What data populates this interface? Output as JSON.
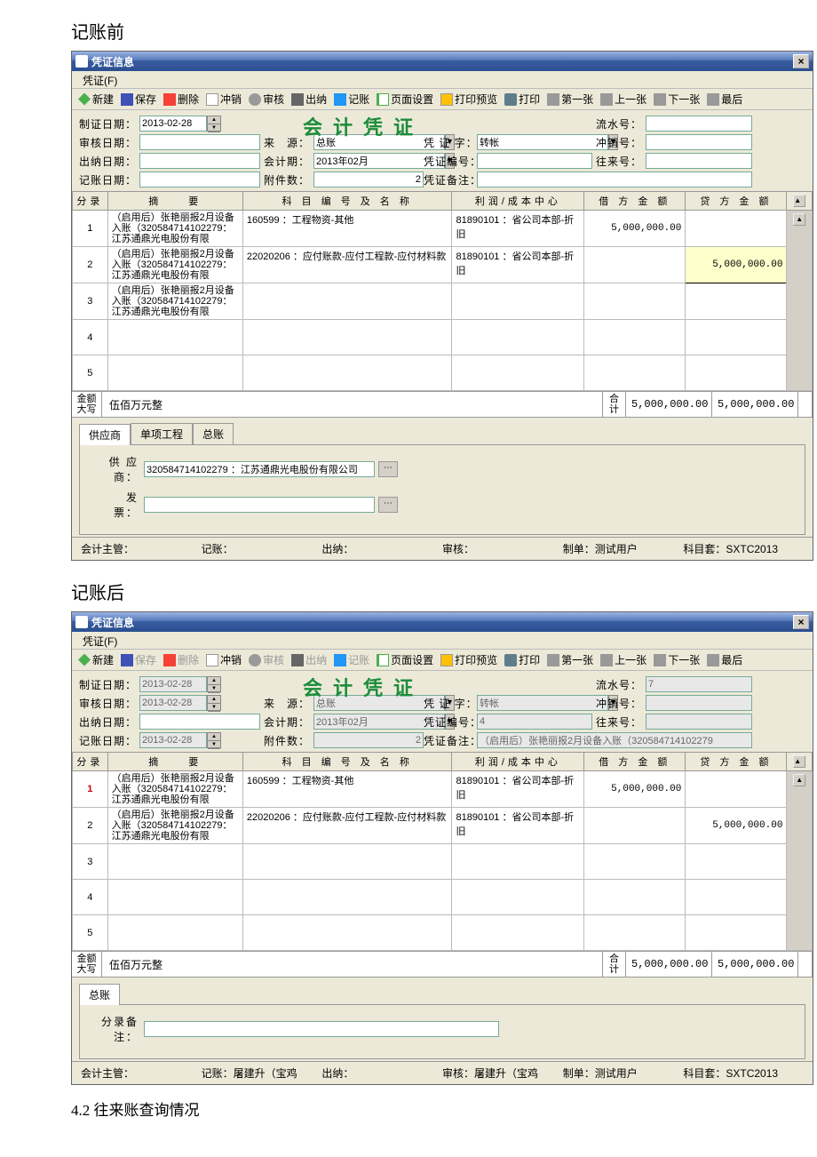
{
  "section1_title": "记账前",
  "section2_title": "记账后",
  "subsection_title": "4.2 往来账查询情况",
  "window": {
    "title": "凭证信息",
    "menu_voucher": "凭证(F)",
    "close_glyph": "×"
  },
  "toolbar": {
    "new": "新建",
    "save": "保存",
    "delete": "删除",
    "offset": "冲销",
    "audit": "审核",
    "cash": "出纳",
    "book": "记账",
    "page_setup": "页面设置",
    "preview": "打印预览",
    "print": "打印",
    "first": "第一张",
    "prev": "上一张",
    "next": "下一张",
    "last": "最后"
  },
  "big_title": "会计凭证",
  "labels": {
    "make_date": "制证日期：",
    "audit_date": "审核日期：",
    "cash_date": "出纳日期：",
    "book_date": "记账日期：",
    "source": "来　源：",
    "period": "会计期：",
    "attach": "附件数：",
    "v_char": "凭 证 字：",
    "v_no": "凭证编号：",
    "v_note": "凭证备注：",
    "serial": "流水号：",
    "offset_no": "冲销号：",
    "corr_no": "往来号："
  },
  "before": {
    "make_date": "2013-02-28",
    "audit_date": "",
    "cash_date": "",
    "book_date": "",
    "source": "总账",
    "period": "2013年02月",
    "attach": "2",
    "v_char": "转帐",
    "v_no": "",
    "v_note": "",
    "serial": "",
    "offset": "",
    "corr": "",
    "idx_red": false,
    "rows": [
      {
        "idx": "1",
        "summary": "（启用后）张艳丽报2月设备入账（320584714102279：江苏通鼎光电股份有限",
        "account": "160599 ：工程物资-其他",
        "center": "81890101 ：省公司本部-折旧",
        "dr": "5,000,000.00",
        "cr": ""
      },
      {
        "idx": "2",
        "summary": "（启用后）张艳丽报2月设备入账（320584714102279：江苏通鼎光电股份有限",
        "account": "22020206 ：应付账款-应付工程款-应付材料款",
        "center": "81890101 ：省公司本部-折旧",
        "dr": "",
        "cr": "5,000,000.00",
        "cr_edit": true
      },
      {
        "idx": "3",
        "summary": "（启用后）张艳丽报2月设备入账（320584714102279：江苏通鼎光电股份有限",
        "account": "",
        "center": "",
        "dr": "",
        "cr": ""
      },
      {
        "idx": "4",
        "summary": "",
        "account": "",
        "center": "",
        "dr": "",
        "cr": ""
      },
      {
        "idx": "5",
        "summary": "",
        "account": "",
        "center": "",
        "dr": "",
        "cr": ""
      }
    ],
    "amount_words": "伍佰万元整",
    "total_dr": "5,000,000.00",
    "total_cr": "5,000,000.00",
    "tabs": [
      "供应商",
      "单项工程",
      "总账"
    ],
    "supplier": "320584714102279 ：江苏通鼎光电股份有限公司",
    "invoice": "",
    "footer_book": "",
    "footer_cash": "",
    "footer_audit": "",
    "footer_maker": "测试用户",
    "footer_set": "SXTC2013"
  },
  "after": {
    "make_date": "2013-02-28",
    "audit_date": "2013-02-28",
    "cash_date": "",
    "book_date": "2013-02-28",
    "source": "总账",
    "period": "2013年02月",
    "attach": "2",
    "v_char": "转帐",
    "v_no": "4",
    "v_note": "（启用后）张艳丽报2月设备入账（320584714102279",
    "serial": "7",
    "offset": "",
    "corr": "",
    "idx_red": true,
    "rows": [
      {
        "idx": "1",
        "summary": "（启用后）张艳丽报2月设备入账（320584714102279：江苏通鼎光电股份有限",
        "account": "160599 ：工程物资-其他",
        "center": "81890101 ：省公司本部-折旧",
        "dr": "5,000,000.00",
        "cr": ""
      },
      {
        "idx": "2",
        "summary": "（启用后）张艳丽报2月设备入账（320584714102279：江苏通鼎光电股份有限",
        "account": "22020206 ：应付账款-应付工程款-应付材料款",
        "center": "81890101 ：省公司本部-折旧",
        "dr": "",
        "cr": "5,000,000.00"
      },
      {
        "idx": "3",
        "summary": "",
        "account": "",
        "center": "",
        "dr": "",
        "cr": ""
      },
      {
        "idx": "4",
        "summary": "",
        "account": "",
        "center": "",
        "dr": "",
        "cr": ""
      },
      {
        "idx": "5",
        "summary": "",
        "account": "",
        "center": "",
        "dr": "",
        "cr": ""
      }
    ],
    "amount_words": "伍佰万元整",
    "total_dr": "5,000,000.00",
    "total_cr": "5,000,000.00",
    "tabs": [
      "总账"
    ],
    "entry_note_label": "分录备注：",
    "entry_note": "",
    "footer_book": "屠建升（宝鸡",
    "footer_cash": "",
    "footer_audit": "屠建升（宝鸡",
    "footer_maker": "测试用户",
    "footer_set": "SXTC2013"
  },
  "table_headers": {
    "idx": "分录",
    "summary": "摘　　要",
    "account": "科 目 编 号 及 名 称",
    "center": "利润/成本中心",
    "dr": "借 方 金 额",
    "cr": "贷 方 金 额"
  },
  "total_labels": {
    "words": "金额大写",
    "hj": "合计"
  },
  "tab_supplier_labels": {
    "supplier": "供 应 商：",
    "invoice": "发　　票："
  },
  "footer_labels": {
    "mgr": "会计主管：",
    "book": "记账：",
    "cash": "出纳：",
    "audit": "审核：",
    "maker": "制单：",
    "set": "科目套："
  }
}
